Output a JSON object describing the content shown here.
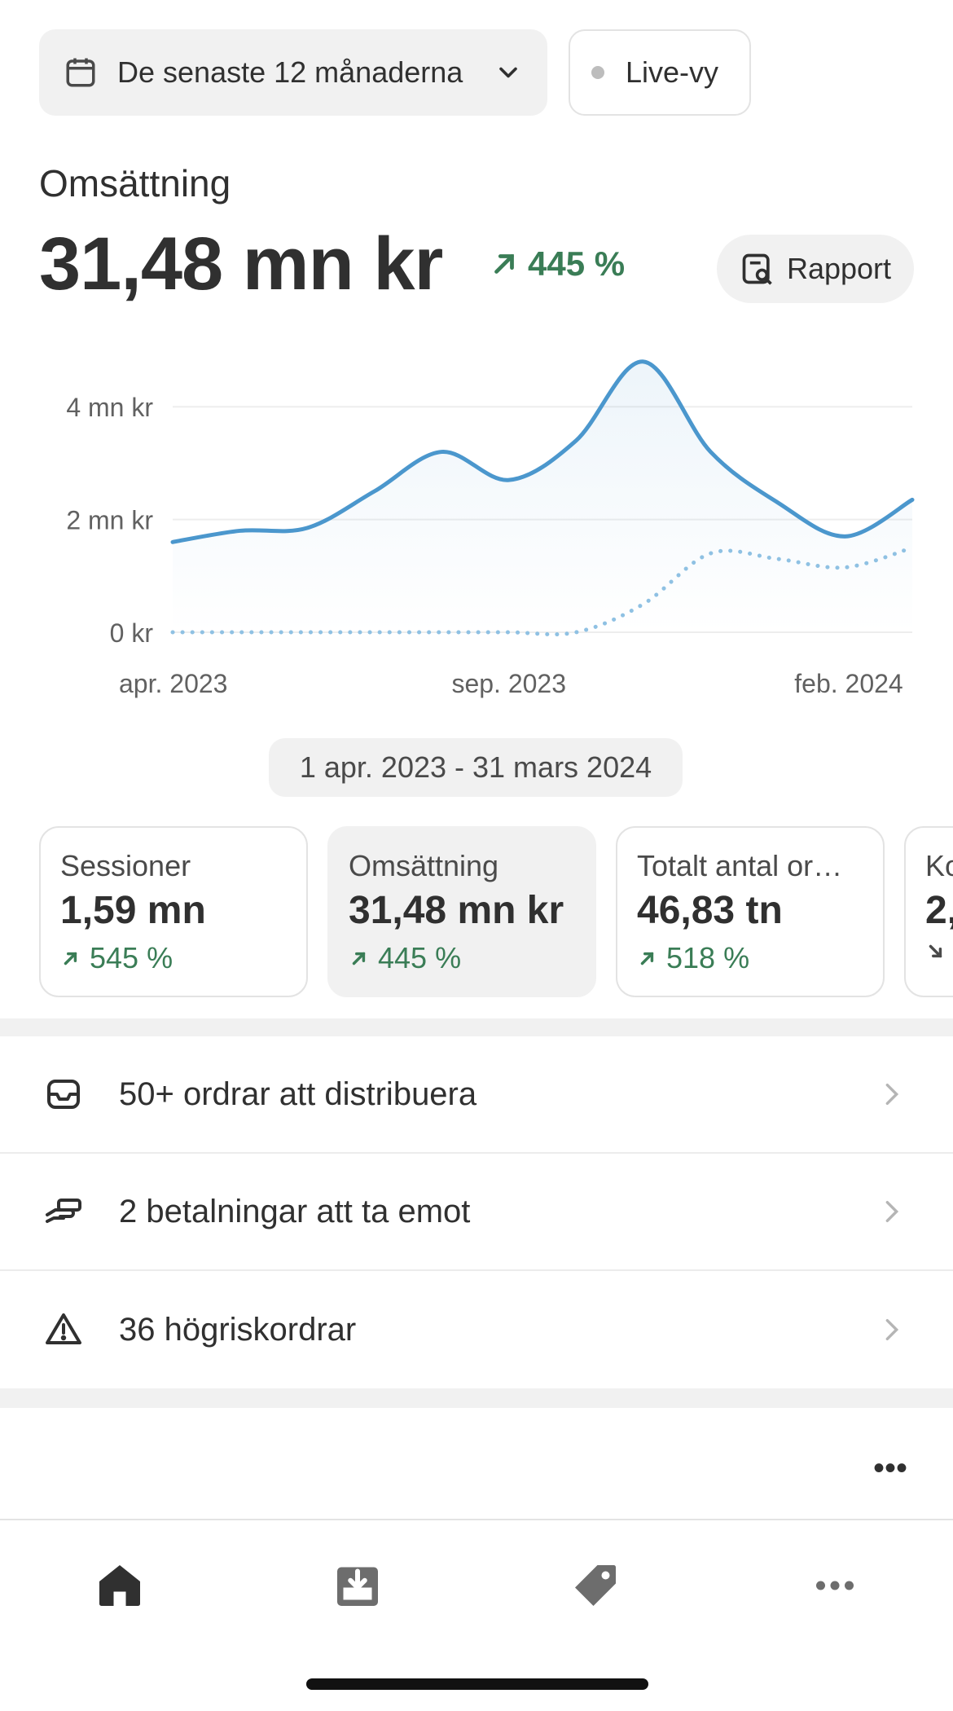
{
  "header": {
    "date_range_label": "De senaste 12 månaderna",
    "live_label": "Live-vy"
  },
  "metric": {
    "label": "Omsättning",
    "value": "31,48 mn kr",
    "change": "445 %",
    "report_label": "Rapport"
  },
  "chart_data": {
    "type": "line",
    "x_tick_labels": [
      "apr. 2023",
      "sep. 2023",
      "feb. 2024"
    ],
    "y_tick_labels": [
      "0 kr",
      "2 mn kr",
      "4 mn kr"
    ],
    "ylim": [
      0,
      5000000
    ],
    "grid": true,
    "legend": "none",
    "x": [
      "2023-04",
      "2023-05",
      "2023-06",
      "2023-07",
      "2023-08",
      "2023-09",
      "2023-10",
      "2023-11",
      "2023-12",
      "2024-01",
      "2024-02",
      "2024-03"
    ],
    "series": [
      {
        "style": "solid",
        "color": "#4b97cd",
        "values": [
          1600000,
          1800000,
          1850000,
          2500000,
          3200000,
          2700000,
          3400000,
          4800000,
          3200000,
          2300000,
          1700000,
          2350000
        ]
      },
      {
        "style": "dotted",
        "color": "#8fc1e3",
        "values": [
          0,
          0,
          0,
          0,
          0,
          0,
          0,
          500000,
          1400000,
          1300000,
          1150000,
          1500000
        ]
      }
    ]
  },
  "range_pill": "1 apr. 2023 - 31 mars 2024",
  "cards": [
    {
      "label": "Sessioner",
      "value": "1,59 mn",
      "change": "545 %",
      "direction": "up"
    },
    {
      "label": "Omsättning",
      "value": "31,48 mn kr",
      "change": "445 %",
      "direction": "up"
    },
    {
      "label": "Totalt antal or…",
      "value": "46,83 tn",
      "change": "518 %",
      "direction": "up"
    },
    {
      "label": "Ko",
      "value": "2,",
      "change": "",
      "direction": "down"
    }
  ],
  "tasks": [
    {
      "label": "50+ ordrar att distribuera",
      "icon": "inbox-icon"
    },
    {
      "label": "2 betalningar att ta emot",
      "icon": "payment-hand-icon"
    },
    {
      "label": "36 högriskordrar",
      "icon": "warning-icon"
    }
  ],
  "more_label": "•••",
  "tabs": [
    "home-icon",
    "orders-icon",
    "products-icon",
    "more-icon"
  ],
  "colors": {
    "accent_green": "#3a7d56",
    "line_blue": "#4b97cd",
    "dotted_blue": "#8fc1e3",
    "surface": "#f1f1f1"
  }
}
